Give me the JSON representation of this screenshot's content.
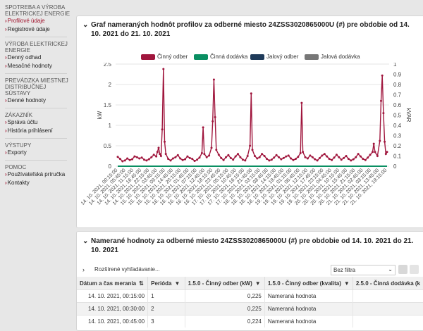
{
  "sidebar": {
    "sections": [
      {
        "heading": "SPOTREBA A VÝROBA ELEKTRICKEJ ENERGIE",
        "items": [
          {
            "label": "Profilové údaje",
            "active": true
          },
          {
            "label": "Registrové údaje",
            "active": false
          }
        ]
      },
      {
        "heading": "VÝROBA ELEKTRICKEJ ENERGIE",
        "items": [
          {
            "label": "Denný odhad",
            "active": false
          },
          {
            "label": "Mesačné hodnoty",
            "active": false
          }
        ]
      },
      {
        "heading": "PREVÁDZKA MIESTNEJ DISTRIBUČNEJ SÚSTAVY",
        "items": [
          {
            "label": "Denné hodnoty",
            "active": false
          }
        ]
      },
      {
        "heading": "ZÁKAZNÍK",
        "items": [
          {
            "label": "Správa účtu",
            "active": false
          },
          {
            "label": "História prihlásení",
            "active": false
          }
        ]
      },
      {
        "heading": "VÝSTUPY",
        "items": [
          {
            "label": "Exporty",
            "active": false
          }
        ]
      },
      {
        "heading": "POMOC",
        "items": [
          {
            "label": "Používateľská príručka",
            "active": false
          },
          {
            "label": "Kontakty",
            "active": false
          }
        ]
      }
    ]
  },
  "chart_panel": {
    "title": "Graf nameraných hodnôt profilov za odberné miesto 24ZSS3020865000U (#) pre obdobie od 14. 10. 2021 do 21. 10. 2021"
  },
  "chart_data": {
    "type": "line",
    "legend": [
      "Činný odber",
      "Činná dodávka",
      "Jalový odber",
      "Jalová dodávka"
    ],
    "legend_colors": [
      "#a0163d",
      "#0a8f62",
      "#1f3b5a",
      "#777777"
    ],
    "ylabel_left": "kW",
    "ylabel_right": "kVAR",
    "y_left_ticks": [
      "0",
      "0.5",
      "1",
      "1.5",
      "2",
      "2.5"
    ],
    "y_right_ticks": [
      "0",
      "0.1",
      "0.2",
      "0.3",
      "0.4",
      "0.5",
      "0.6",
      "0.7",
      "0.8",
      "0.9",
      "1"
    ],
    "ylim_left": [
      0,
      2.5
    ],
    "ylim_right": [
      0,
      1
    ],
    "x_ticks": [
      "14. 10. 2021, 00:15:00",
      "14. 10. 2021, 05:45:00",
      "14. 10. 2021, 11:15:00",
      "14. 10. 2021, 16:45:00",
      "14. 10. 2021, 22:15:00",
      "15. 10. 2021, 03:45:00",
      "15. 10. 2021, 09:15:00",
      "15. 10. 2021, 14:45:00",
      "15. 10. 2021, 20:15:00",
      "16. 10. 2021, 01:45:00",
      "16. 10. 2021, 07:15:00",
      "16. 10. 2021, 12:45:00",
      "16. 10. 2021, 18:15:00",
      "16. 10. 2021, 23:45:00",
      "17. 10. 2021, 05:15:00",
      "17. 10. 2021, 10:45:00",
      "17. 10. 2021, 16:15:00",
      "17. 10. 2021, 21:45:00",
      "18. 10. 2021, 03:15:00",
      "18. 10. 2021, 08:45:00",
      "18. 10. 2021, 14:15:00",
      "18. 10. 2021, 19:45:00",
      "19. 10. 2021, 01:15:00",
      "19. 10. 2021, 06:45:00",
      "19. 10. 2021, 12:15:00",
      "19. 10. 2021, 17:45:00",
      "19. 10. 2021, 23:15:00",
      "20. 10. 2021, 04:45:00",
      "20. 10. 2021, 10:15:00",
      "20. 10. 2021, 15:45:00",
      "20. 10. 2021, 21:15:00",
      "21. 10. 2021, 02:45:00",
      "21. 10. 2021, 08:15:00",
      "21. 10. 2021, 13:45:00",
      "21. 10. 2021, 19:15:00"
    ],
    "series": [
      {
        "name": "Činný odber",
        "axis": "left",
        "color": "#a0163d",
        "points": [
          [
            0,
            0.23
          ],
          [
            2,
            0.18
          ],
          [
            4,
            0.12
          ],
          [
            6,
            0.14
          ],
          [
            8,
            0.19
          ],
          [
            10,
            0.15
          ],
          [
            12,
            0.17
          ],
          [
            14,
            0.24
          ],
          [
            16,
            0.22
          ],
          [
            18,
            0.19
          ],
          [
            20,
            0.21
          ],
          [
            22,
            0.16
          ],
          [
            24,
            0.14
          ],
          [
            26,
            0.17
          ],
          [
            28,
            0.22
          ],
          [
            30,
            0.28
          ],
          [
            32,
            0.24
          ],
          [
            33,
            0.35
          ],
          [
            34,
            0.45
          ],
          [
            35,
            0.3
          ],
          [
            36,
            0.25
          ],
          [
            37,
            0.9
          ],
          [
            38,
            2.38
          ],
          [
            39,
            0.6
          ],
          [
            40,
            0.3
          ],
          [
            42,
            0.18
          ],
          [
            44,
            0.14
          ],
          [
            46,
            0.19
          ],
          [
            48,
            0.22
          ],
          [
            50,
            0.27
          ],
          [
            52,
            0.19
          ],
          [
            54,
            0.15
          ],
          [
            56,
            0.17
          ],
          [
            58,
            0.24
          ],
          [
            60,
            0.2
          ],
          [
            62,
            0.18
          ],
          [
            64,
            0.13
          ],
          [
            66,
            0.16
          ],
          [
            68,
            0.21
          ],
          [
            70,
            0.32
          ],
          [
            71,
            0.95
          ],
          [
            72,
            0.3
          ],
          [
            74,
            0.22
          ],
          [
            76,
            0.26
          ],
          [
            78,
            0.45
          ],
          [
            79,
            1.1
          ],
          [
            80,
            2.12
          ],
          [
            81,
            1.2
          ],
          [
            82,
            0.4
          ],
          [
            84,
            0.28
          ],
          [
            86,
            0.2
          ],
          [
            88,
            0.15
          ],
          [
            90,
            0.22
          ],
          [
            92,
            0.27
          ],
          [
            94,
            0.2
          ],
          [
            96,
            0.16
          ],
          [
            98,
            0.24
          ],
          [
            100,
            0.3
          ],
          [
            102,
            0.22
          ],
          [
            104,
            0.16
          ],
          [
            106,
            0.14
          ],
          [
            108,
            0.25
          ],
          [
            110,
            0.5
          ],
          [
            111,
            1.78
          ],
          [
            112,
            0.4
          ],
          [
            114,
            0.25
          ],
          [
            116,
            0.19
          ],
          [
            118,
            0.22
          ],
          [
            120,
            0.3
          ],
          [
            122,
            0.25
          ],
          [
            124,
            0.18
          ],
          [
            126,
            0.14
          ],
          [
            128,
            0.16
          ],
          [
            130,
            0.21
          ],
          [
            132,
            0.27
          ],
          [
            134,
            0.22
          ],
          [
            136,
            0.17
          ],
          [
            138,
            0.2
          ],
          [
            140,
            0.24
          ],
          [
            142,
            0.26
          ],
          [
            144,
            0.19
          ],
          [
            146,
            0.15
          ],
          [
            148,
            0.18
          ],
          [
            150,
            0.23
          ],
          [
            152,
            0.32
          ],
          [
            153,
            1.55
          ],
          [
            154,
            0.35
          ],
          [
            156,
            0.22
          ],
          [
            158,
            0.19
          ],
          [
            160,
            0.26
          ],
          [
            162,
            0.22
          ],
          [
            164,
            0.17
          ],
          [
            166,
            0.14
          ],
          [
            168,
            0.2
          ],
          [
            170,
            0.26
          ],
          [
            172,
            0.3
          ],
          [
            174,
            0.24
          ],
          [
            176,
            0.18
          ],
          [
            178,
            0.15
          ],
          [
            180,
            0.21
          ],
          [
            182,
            0.28
          ],
          [
            184,
            0.22
          ],
          [
            186,
            0.16
          ],
          [
            188,
            0.2
          ],
          [
            190,
            0.25
          ],
          [
            192,
            0.18
          ],
          [
            194,
            0.14
          ],
          [
            196,
            0.17
          ],
          [
            198,
            0.22
          ],
          [
            200,
            0.3
          ],
          [
            202,
            0.24
          ],
          [
            204,
            0.18
          ],
          [
            206,
            0.15
          ],
          [
            208,
            0.21
          ],
          [
            210,
            0.28
          ],
          [
            212,
            0.35
          ],
          [
            213,
            0.55
          ],
          [
            214,
            0.35
          ],
          [
            216,
            0.25
          ],
          [
            218,
            0.62
          ],
          [
            219,
            1.6
          ],
          [
            220,
            2.22
          ],
          [
            221,
            1.3
          ],
          [
            222,
            0.6
          ],
          [
            223,
            0.3
          ],
          [
            224,
            0.35
          ]
        ]
      },
      {
        "name": "Činná dodávka",
        "axis": "left",
        "color": "#0a8f62",
        "points": [
          [
            0,
            0
          ],
          [
            224,
            0
          ]
        ]
      }
    ]
  },
  "table_panel": {
    "title": "Namerané hodnoty za odberné miesto 24ZSS3020865000U (#) pre obdobie od 14. 10. 2021 do 21. 10. 2021",
    "advanced_search": "Rozšírené vyhľadávanie...",
    "filter_select": "Bez filtra",
    "columns": [
      "Dátum a čas merania",
      "Perióda",
      "1.5.0 - Činný odber (kW)",
      "1.5.0 - Činný odber (kvalita)",
      "2.5.0 - Činná dodávka (k"
    ],
    "rows": [
      [
        "14. 10. 2021, 00:15:00",
        "1",
        "0,225",
        "Nameraná hodnota"
      ],
      [
        "14. 10. 2021, 00:30:00",
        "2",
        "0,225",
        "Nameraná hodnota"
      ],
      [
        "14. 10. 2021, 00:45:00",
        "3",
        "0,224",
        "Nameraná hodnota"
      ]
    ]
  }
}
